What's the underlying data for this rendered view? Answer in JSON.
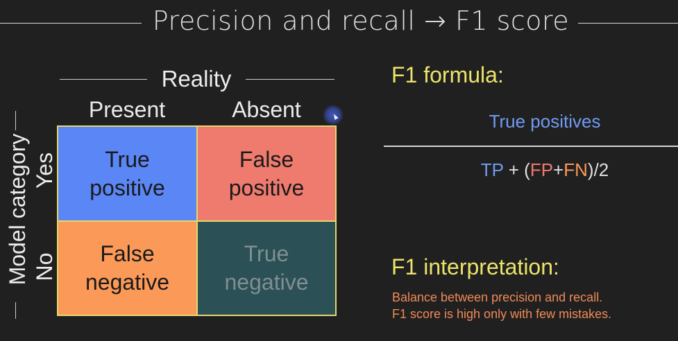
{
  "title": "Precision and recall → F1 score",
  "matrix": {
    "reality_label": "Reality",
    "col_present": "Present",
    "col_absent": "Absent",
    "model_label": "Model category",
    "row_yes": "Yes",
    "row_no": "No",
    "tp_line1": "True",
    "tp_line2": "positive",
    "fp_line1": "False",
    "fp_line2": "positive",
    "fn_line1": "False",
    "fn_line2": "negative",
    "tn_line1": "True",
    "tn_line2": "negative",
    "colors": {
      "tp": "#5b86f5",
      "fp": "#ee7b6e",
      "fn": "#fb9a58",
      "tn": "#2b5056",
      "border": "#e5d96a"
    }
  },
  "formula": {
    "heading": "F1 formula:",
    "numerator": "True positives",
    "den_tp": "TP",
    "den_plus1": " + (",
    "den_fp": "FP",
    "den_plus2": "+",
    "den_fn": "FN",
    "den_tail": ")/2"
  },
  "interpretation": {
    "heading": "F1 interpretation:",
    "line1": "Balance between precision and recall.",
    "line2": "F1 score is high only with few mistakes."
  },
  "accent_colors": {
    "heading_yellow": "#ede36b",
    "text_orange": "#f08a55",
    "blue": "#6f9bf3"
  }
}
